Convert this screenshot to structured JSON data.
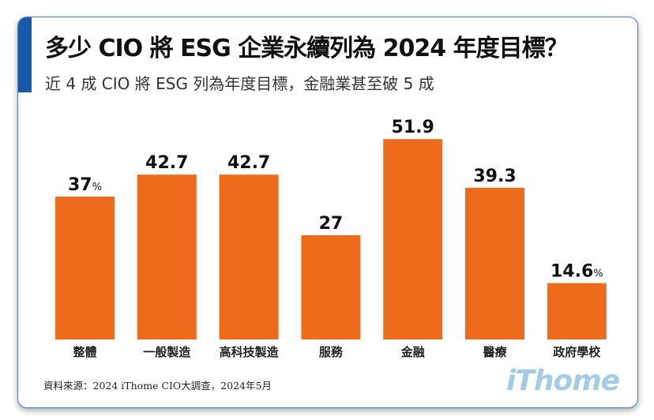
{
  "title": "多少 CIO 將 ESG 企業永續列為 2024 年度目標？",
  "subtitle": "近 4 成 CIO 將 ESG 列為年度目標，金融業甚至破 5 成",
  "source": "資料來源：2024 iThome CIO大調查，2024年5月",
  "logo": "iThome",
  "chart_data": {
    "type": "bar",
    "categories": [
      "整體",
      "一般製造",
      "高科技製造",
      "服務",
      "金融",
      "醫療",
      "政府學校"
    ],
    "values": [
      37,
      42.7,
      42.7,
      27,
      51.9,
      39.3,
      14.6
    ],
    "data_labels": [
      "37",
      "42.7",
      "42.7",
      "27",
      "51.9",
      "39.3",
      "14.6"
    ],
    "label_units": [
      "%",
      "",
      "",
      "",
      "",
      "",
      "%"
    ],
    "bar_color": "#ee6b1c",
    "ylim": [
      0,
      60
    ],
    "grid": false
  }
}
